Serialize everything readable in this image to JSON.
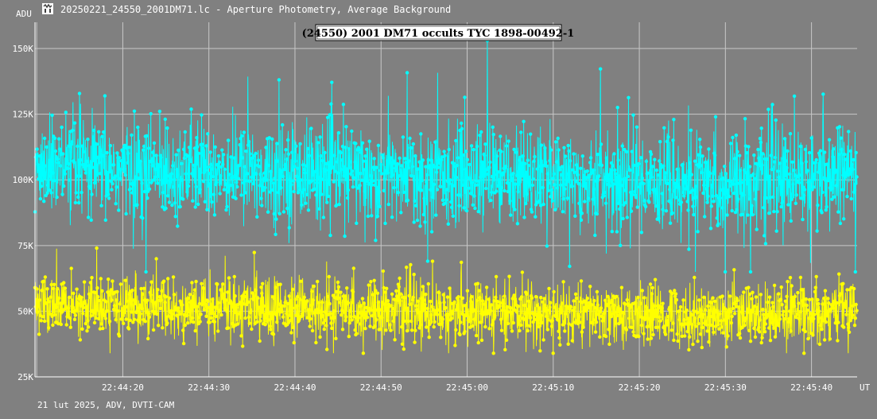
{
  "window": {
    "title": "20250221_24550_2001DM71.lc - Aperture Photometry, Average Background",
    "icon": "lightcurve-app-icon"
  },
  "footer": {
    "text": "21 lut 2025, ADV, DVTI-CAM"
  },
  "colors": {
    "background": "#808080",
    "grid": "#c8c8c8",
    "series_target": "#00ffff",
    "series_comparison": "#ffff00",
    "title_box": "#ffffff"
  },
  "chart_data": {
    "type": "line",
    "title": "(24550) 2001 DM71 occults TYC 1898-00492-1",
    "ylabel": "ADU",
    "xlabel": "UT",
    "ylim": [
      25000,
      160000
    ],
    "xlim": [
      0,
      95.5
    ],
    "y_ticks": [
      {
        "value": 25000,
        "label": "25K"
      },
      {
        "value": 50000,
        "label": "50K"
      },
      {
        "value": 75000,
        "label": "75K"
      },
      {
        "value": 100000,
        "label": "100K"
      },
      {
        "value": 125000,
        "label": "125K"
      },
      {
        "value": 150000,
        "label": "150K"
      }
    ],
    "x_ticks": [
      {
        "value": 10.2,
        "label": "22:44:20"
      },
      {
        "value": 20.2,
        "label": "22:44:30"
      },
      {
        "value": 30.2,
        "label": "22:44:40"
      },
      {
        "value": 40.2,
        "label": "22:44:50"
      },
      {
        "value": 50.2,
        "label": "22:45:00"
      },
      {
        "value": 60.2,
        "label": "22:45:10"
      },
      {
        "value": 70.2,
        "label": "22:45:20"
      },
      {
        "value": 80.2,
        "label": "22:45:30"
      },
      {
        "value": 90.2,
        "label": "22:45:40"
      }
    ],
    "grid": true,
    "series": [
      {
        "role": "target",
        "mean": 103000,
        "noise": 9000,
        "min": 65000,
        "max": 153000,
        "trend_points": [
          [
            0,
            104000
          ],
          [
            30,
            103000
          ],
          [
            60,
            101000
          ],
          [
            80,
            98000
          ],
          [
            95.5,
            103000
          ]
        ],
        "n_points": 2400
      },
      {
        "role": "comparison",
        "mean": 51000,
        "noise": 5500,
        "min": 34000,
        "max": 74000,
        "trend_points": [
          [
            0,
            52000
          ],
          [
            30,
            51000
          ],
          [
            60,
            49000
          ],
          [
            80,
            48000
          ],
          [
            95.5,
            51000
          ]
        ],
        "n_points": 2400
      }
    ]
  }
}
